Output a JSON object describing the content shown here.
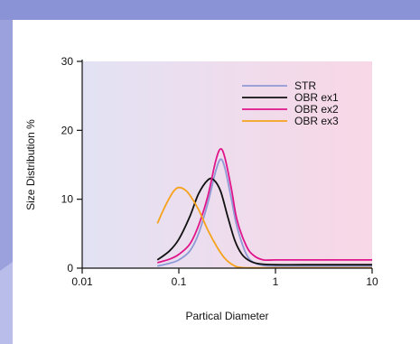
{
  "chart_data": {
    "type": "line",
    "title": "",
    "xlabel": "Partical Diameter",
    "ylabel": "Size Distribution %",
    "xscale": "log",
    "xlim": [
      0.01,
      10
    ],
    "ylim": [
      0,
      30
    ],
    "xticks": [
      0.01,
      0.1,
      1,
      10
    ],
    "xtick_labels": [
      "0.01",
      "0.1",
      "1",
      "10"
    ],
    "yticks": [
      0,
      10,
      20,
      30
    ],
    "ytick_labels": [
      "0",
      "10",
      "20",
      "30"
    ],
    "grid": false,
    "legend_position": "top-right",
    "background": "gradient lavender to pink",
    "series": [
      {
        "name": "STR",
        "color": "#8e9ad6",
        "points": [
          [
            0.06,
            0.3
          ],
          [
            0.08,
            0.7
          ],
          [
            0.1,
            1.2
          ],
          [
            0.13,
            2.5
          ],
          [
            0.16,
            5.0
          ],
          [
            0.2,
            9.5
          ],
          [
            0.24,
            14.0
          ],
          [
            0.27,
            15.8
          ],
          [
            0.3,
            14.5
          ],
          [
            0.35,
            10.0
          ],
          [
            0.4,
            6.0
          ],
          [
            0.5,
            2.0
          ],
          [
            0.6,
            0.8
          ],
          [
            0.75,
            0.4
          ],
          [
            1,
            0.3
          ],
          [
            2,
            0.3
          ],
          [
            10,
            0.3
          ]
        ]
      },
      {
        "name": "OBR ex1",
        "color": "#111111",
        "points": [
          [
            0.06,
            1.2
          ],
          [
            0.08,
            2.5
          ],
          [
            0.1,
            4.2
          ],
          [
            0.13,
            7.5
          ],
          [
            0.16,
            10.8
          ],
          [
            0.2,
            12.8
          ],
          [
            0.23,
            12.8
          ],
          [
            0.27,
            11.2
          ],
          [
            0.32,
            7.5
          ],
          [
            0.38,
            4.0
          ],
          [
            0.45,
            2.0
          ],
          [
            0.55,
            1.0
          ],
          [
            0.7,
            0.6
          ],
          [
            1,
            0.5
          ],
          [
            2,
            0.5
          ],
          [
            10,
            0.5
          ]
        ]
      },
      {
        "name": "OBR ex2",
        "color": "#e0158b",
        "points": [
          [
            0.06,
            0.8
          ],
          [
            0.08,
            1.3
          ],
          [
            0.1,
            2.0
          ],
          [
            0.13,
            3.5
          ],
          [
            0.16,
            6.2
          ],
          [
            0.2,
            10.5
          ],
          [
            0.24,
            15.5
          ],
          [
            0.27,
            17.3
          ],
          [
            0.3,
            16.0
          ],
          [
            0.35,
            11.5
          ],
          [
            0.4,
            7.0
          ],
          [
            0.5,
            3.2
          ],
          [
            0.6,
            1.8
          ],
          [
            0.75,
            1.2
          ],
          [
            1,
            1.2
          ],
          [
            2,
            1.2
          ],
          [
            10,
            1.2
          ]
        ]
      },
      {
        "name": "OBR ex3",
        "color": "#f6a21d",
        "points": [
          [
            0.06,
            6.5
          ],
          [
            0.07,
            8.6
          ],
          [
            0.08,
            10.2
          ],
          [
            0.09,
            11.3
          ],
          [
            0.1,
            11.7
          ],
          [
            0.115,
            11.4
          ],
          [
            0.13,
            10.6
          ],
          [
            0.16,
            8.5
          ],
          [
            0.2,
            5.5
          ],
          [
            0.25,
            3.0
          ],
          [
            0.3,
            1.4
          ],
          [
            0.35,
            0.6
          ],
          [
            0.4,
            0.2
          ],
          [
            0.5,
            0.05
          ],
          [
            1,
            0.05
          ],
          [
            10,
            0.05
          ]
        ]
      }
    ]
  }
}
